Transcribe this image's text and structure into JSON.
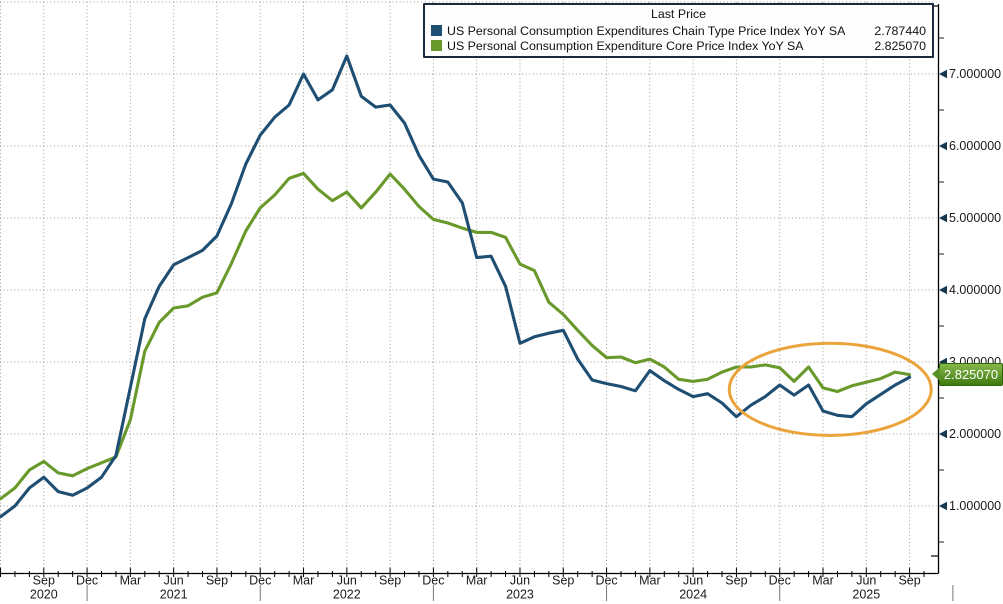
{
  "legend": {
    "title": "Last Price"
  },
  "chart_data": {
    "type": "line",
    "title": "Last Price",
    "x_start_month": "2020-06",
    "x_end_month": "2025-09",
    "x_frequency": "monthly",
    "grid": true,
    "legend_position": "top",
    "ylim": [
      0.05,
      8.05
    ],
    "y_gridlines": [
      1,
      2,
      3,
      4,
      5,
      6,
      7,
      8
    ],
    "y_ticks": [
      {
        "value": 1,
        "label": "1.000000"
      },
      {
        "value": 2,
        "label": "2.000000"
      },
      {
        "value": 3,
        "label": "3.000000"
      },
      {
        "value": 4,
        "label": "4.000000"
      },
      {
        "value": 5,
        "label": "5.000000"
      },
      {
        "value": 6,
        "label": "6.000000"
      },
      {
        "value": 7,
        "label": "7.000000"
      }
    ],
    "y_minor_step": 0.5,
    "x_tick_month_indices": [
      3,
      6,
      9,
      12,
      15,
      18,
      21,
      24,
      27,
      30,
      33,
      36,
      39,
      42,
      45,
      48,
      51,
      54,
      57,
      60,
      63
    ],
    "x_tick_labels": [
      "Sep",
      "Dec",
      "Mar",
      "Jun",
      "Sep",
      "Dec",
      "Mar",
      "Jun",
      "Sep",
      "Dec",
      "Mar",
      "Jun",
      "Sep",
      "Dec",
      "Mar",
      "Jun",
      "Sep",
      "Dec",
      "Mar",
      "Jun",
      "Sep"
    ],
    "year_labels": [
      {
        "text": "2020",
        "month_index": 3
      },
      {
        "text": "2021",
        "month_index": 12
      },
      {
        "text": "2022",
        "month_index": 24
      },
      {
        "text": "2023",
        "month_index": 36
      },
      {
        "text": "2024",
        "month_index": 48
      },
      {
        "text": "2025",
        "month_index": 60
      }
    ],
    "year_separator_month_indices": [
      6,
      18,
      30,
      42,
      54,
      66
    ],
    "series": [
      {
        "name": "US Personal Consumption Expenditures Chain Type Price Index YoY SA",
        "last_label": "2.787440",
        "last_value": 2.78744,
        "color": "#1f4e73",
        "values": [
          0.85,
          1.0,
          1.25,
          1.4,
          1.2,
          1.15,
          1.25,
          1.4,
          1.7,
          2.65,
          3.6,
          4.05,
          4.35,
          4.45,
          4.55,
          4.75,
          5.2,
          5.75,
          6.15,
          6.4,
          6.57,
          7.0,
          6.64,
          6.78,
          7.25,
          6.69,
          6.54,
          6.57,
          6.32,
          5.87,
          5.54,
          5.5,
          5.21,
          4.45,
          4.47,
          4.05,
          3.26,
          3.35,
          3.4,
          3.44,
          3.04,
          2.75,
          2.7,
          2.66,
          2.6,
          2.88,
          2.74,
          2.62,
          2.52,
          2.56,
          2.43,
          2.24,
          2.4,
          2.52,
          2.68,
          2.54,
          2.68,
          2.32,
          2.26,
          2.24,
          2.42,
          2.55,
          2.68,
          2.78744
        ]
      },
      {
        "name": "US Personal Consumption Expenditure Core Price Index YoY SA",
        "last_label": "2.825070",
        "last_value": 2.82507,
        "color": "#68992a",
        "values": [
          1.1,
          1.25,
          1.5,
          1.62,
          1.46,
          1.42,
          1.52,
          1.6,
          1.68,
          2.2,
          3.15,
          3.55,
          3.75,
          3.78,
          3.9,
          3.96,
          4.37,
          4.82,
          5.14,
          5.32,
          5.55,
          5.62,
          5.4,
          5.24,
          5.36,
          5.14,
          5.36,
          5.61,
          5.4,
          5.16,
          4.98,
          4.93,
          4.86,
          4.8,
          4.8,
          4.73,
          4.36,
          4.27,
          3.83,
          3.66,
          3.44,
          3.23,
          3.06,
          3.07,
          2.99,
          3.04,
          2.93,
          2.76,
          2.73,
          2.76,
          2.86,
          2.93,
          2.93,
          2.96,
          2.92,
          2.73,
          2.93,
          2.64,
          2.59,
          2.67,
          2.72,
          2.77,
          2.86,
          2.82507
        ]
      }
    ],
    "axis_tag": {
      "label": "2.825070"
    },
    "annotation": {
      "shape": "ellipse",
      "color": "#eba43c",
      "center_month_index": 57.5,
      "center_value": 2.62,
      "rx_months": 7.0,
      "ry_value": 0.64
    }
  }
}
